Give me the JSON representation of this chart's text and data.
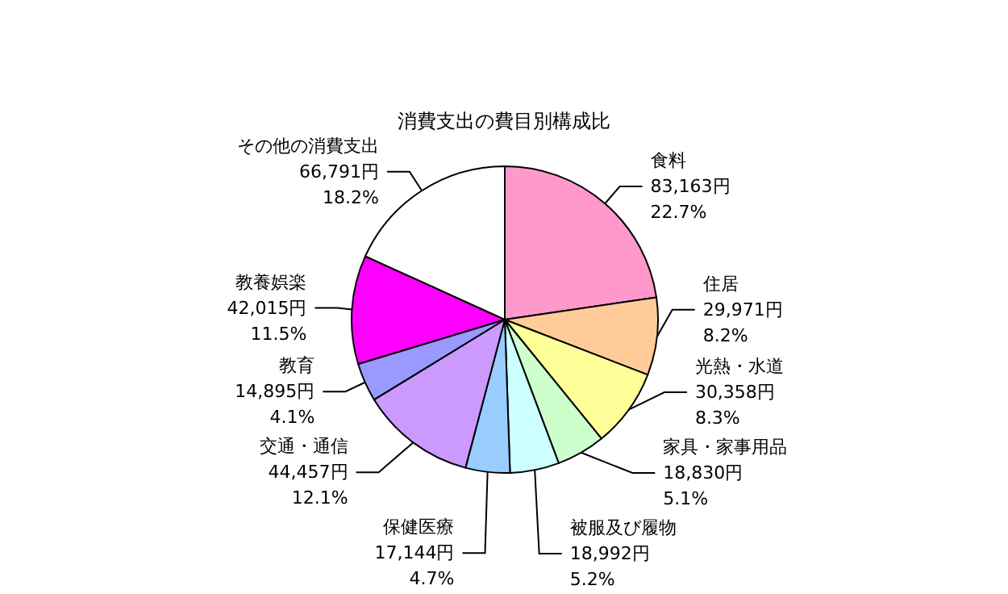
{
  "chart_data": {
    "type": "pie",
    "title": "消費支出の費目別構成比",
    "categories": [
      "食料",
      "住居",
      "光熱・水道",
      "家具・家事用品",
      "被服及び履物",
      "保健医療",
      "交通・通信",
      "教育",
      "教養娯楽",
      "その他の消費支出"
    ],
    "values": [
      83163,
      29971,
      30358,
      18830,
      18992,
      17144,
      44457,
      14895,
      42015,
      66791
    ],
    "value_labels": [
      "83,163円\n22.7%",
      "29,971円\n8.2%",
      "30,358円\n8.3%",
      "18,830円\n5.1%",
      "18,992円\n5.2%",
      "17,144円\n4.7%",
      "44,457円\n12.1%",
      "14,895円\n4.1%",
      "42,015円\n11.5%",
      "66,791円\n18.2%"
    ],
    "colors": [
      "#ff99cc",
      "#ffcc99",
      "#ffff99",
      "#ccffcc",
      "#ccffff",
      "#99ccff",
      "#cc99ff",
      "#9999ff",
      "#ff00ff",
      "#ffffff"
    ],
    "legend": false
  }
}
